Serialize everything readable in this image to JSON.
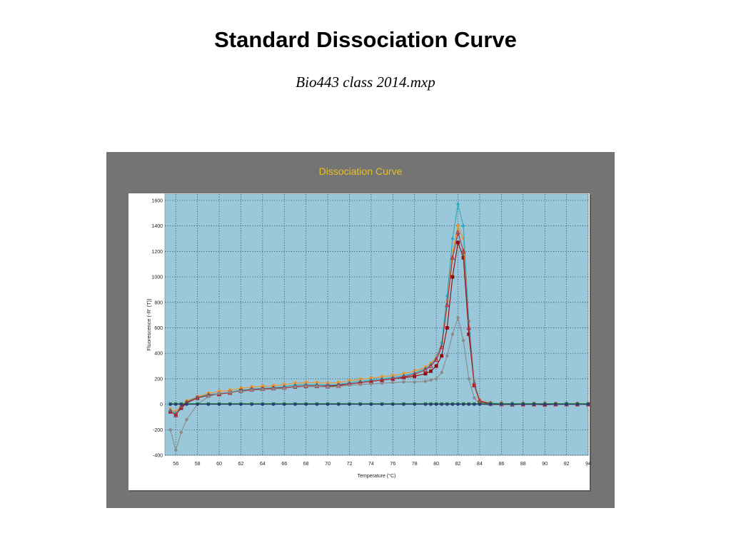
{
  "slide": {
    "title": "Standard Dissociation Curve",
    "subtitle": "Bio443 class 2014.mxp"
  },
  "chart_data": {
    "type": "line",
    "title": "Dissociation Curve",
    "xlabel": "Temperature (°C)",
    "ylabel": "Fluorescence (-R' (T))",
    "xlim": [
      55,
      94
    ],
    "ylim": [
      -400,
      1650
    ],
    "x_ticks": [
      "56",
      "58",
      "60",
      "62",
      "64",
      "66",
      "68",
      "70",
      "72",
      "74",
      "76",
      "78",
      "80",
      "82",
      "84",
      "86",
      "88",
      "90",
      "92",
      "94"
    ],
    "y_ticks": [
      "-400",
      "-200",
      "0",
      "200",
      "400",
      "600",
      "800",
      "1000",
      "1200",
      "1400",
      "1600"
    ],
    "grid": true,
    "plot_background": "#9ac8da",
    "panel_background": "#747474",
    "title_color": "#e6c022",
    "x": [
      55.5,
      56,
      56.5,
      57,
      58,
      59,
      60,
      61,
      62,
      63,
      64,
      65,
      66,
      67,
      68,
      69,
      70,
      71,
      72,
      73,
      74,
      75,
      76,
      77,
      78,
      79,
      79.5,
      80,
      80.5,
      81,
      81.5,
      82,
      82.5,
      83,
      83.5,
      84,
      85,
      86,
      87,
      88,
      89,
      90,
      91,
      92,
      93,
      94
    ],
    "series": [
      {
        "color": "#8b0a0a",
        "marker": "square",
        "values": [
          -60,
          -80,
          -30,
          10,
          50,
          70,
          80,
          95,
          110,
          115,
          120,
          125,
          130,
          135,
          140,
          140,
          145,
          150,
          160,
          170,
          180,
          190,
          200,
          210,
          220,
          240,
          260,
          300,
          380,
          600,
          1000,
          1270,
          1150,
          550,
          150,
          20,
          5,
          0,
          -5,
          0,
          0,
          -5,
          0,
          0,
          0,
          0
        ]
      },
      {
        "color": "#f0901e",
        "marker": "triangle-down",
        "values": [
          -40,
          -60,
          -10,
          25,
          60,
          85,
          100,
          110,
          125,
          135,
          140,
          145,
          155,
          165,
          170,
          170,
          165,
          170,
          185,
          195,
          205,
          215,
          225,
          240,
          260,
          290,
          320,
          370,
          480,
          800,
          1200,
          1400,
          1300,
          650,
          180,
          30,
          10,
          5,
          0,
          0,
          0,
          5,
          0,
          0,
          0,
          0
        ]
      },
      {
        "color": "#2aa8b8",
        "marker": "diamond",
        "values": [
          -50,
          -70,
          -20,
          20,
          55,
          75,
          85,
          95,
          110,
          120,
          125,
          130,
          140,
          150,
          155,
          155,
          150,
          155,
          170,
          180,
          190,
          200,
          210,
          225,
          245,
          280,
          310,
          360,
          480,
          850,
          1300,
          1570,
          1400,
          650,
          170,
          25,
          10,
          5,
          0,
          0,
          0,
          0,
          0,
          0,
          0,
          0
        ]
      },
      {
        "color": "#b22a3a",
        "marker": "triangle",
        "values": [
          -55,
          -85,
          -20,
          15,
          50,
          70,
          80,
          90,
          105,
          115,
          120,
          125,
          130,
          140,
          145,
          145,
          140,
          145,
          160,
          170,
          180,
          190,
          200,
          215,
          235,
          270,
          300,
          350,
          450,
          780,
          1150,
          1350,
          1200,
          600,
          150,
          25,
          5,
          0,
          0,
          0,
          0,
          0,
          0,
          0,
          0,
          0
        ]
      },
      {
        "color": "#8a8a8a",
        "marker": "circle",
        "values": [
          -200,
          -360,
          -220,
          -120,
          0,
          60,
          85,
          95,
          100,
          110,
          115,
          120,
          125,
          135,
          140,
          140,
          135,
          140,
          150,
          155,
          160,
          165,
          170,
          175,
          175,
          180,
          190,
          200,
          250,
          380,
          550,
          680,
          500,
          200,
          50,
          0,
          -5,
          -5,
          -5,
          0,
          0,
          0,
          0,
          0,
          0,
          0
        ]
      },
      {
        "color": "#1a8a2a",
        "marker": "x",
        "values": [
          5,
          5,
          5,
          5,
          5,
          5,
          5,
          5,
          5,
          5,
          5,
          5,
          5,
          5,
          5,
          5,
          5,
          5,
          5,
          5,
          5,
          5,
          5,
          5,
          5,
          5,
          5,
          5,
          5,
          5,
          5,
          5,
          5,
          5,
          5,
          5,
          5,
          5,
          5,
          5,
          5,
          5,
          5,
          5,
          5,
          5
        ]
      },
      {
        "color": "#2a3a7a",
        "marker": "circle",
        "values": [
          0,
          0,
          0,
          0,
          0,
          0,
          0,
          0,
          0,
          0,
          0,
          0,
          0,
          0,
          0,
          0,
          0,
          0,
          0,
          0,
          0,
          0,
          0,
          0,
          0,
          0,
          0,
          0,
          0,
          0,
          0,
          0,
          0,
          0,
          0,
          0,
          0,
          0,
          0,
          0,
          0,
          0,
          0,
          0,
          0,
          0
        ]
      }
    ]
  }
}
